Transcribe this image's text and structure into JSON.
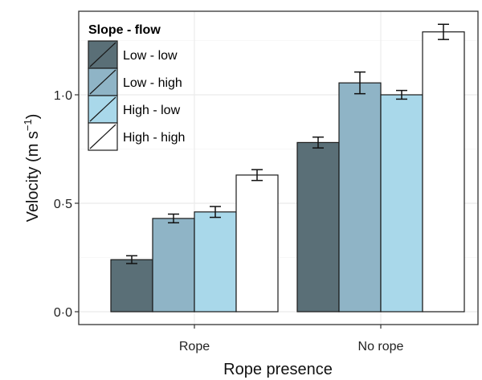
{
  "chart_data": {
    "type": "bar",
    "categories": [
      "Rope",
      "No rope"
    ],
    "series": [
      {
        "name": "Low - low",
        "color": "#5a6f77",
        "values": [
          0.24,
          0.78
        ],
        "errors": [
          0.018,
          0.025
        ]
      },
      {
        "name": "Low - high",
        "color": "#8fb4c6",
        "values": [
          0.43,
          1.055
        ],
        "errors": [
          0.02,
          0.05
        ]
      },
      {
        "name": "High - low",
        "color": "#a9d8ea",
        "values": [
          0.46,
          1.0
        ],
        "errors": [
          0.025,
          0.02
        ]
      },
      {
        "name": "High - high",
        "color": "#ffffff",
        "values": [
          0.63,
          1.29
        ],
        "errors": [
          0.025,
          0.035
        ]
      }
    ],
    "xlabel": "Rope presence",
    "ylabel": "Velocity (m s",
    "ylabel_sup": "−1",
    "ylabel_end": ")",
    "yticks": [
      0.0,
      0.5,
      1.0
    ],
    "ytick_labels": [
      "0·0",
      "0·5",
      "1·0"
    ],
    "ylim": [
      -0.05,
      1.38
    ],
    "grid": true,
    "legend": {
      "title": "Slope - flow",
      "position": "top-left"
    }
  }
}
